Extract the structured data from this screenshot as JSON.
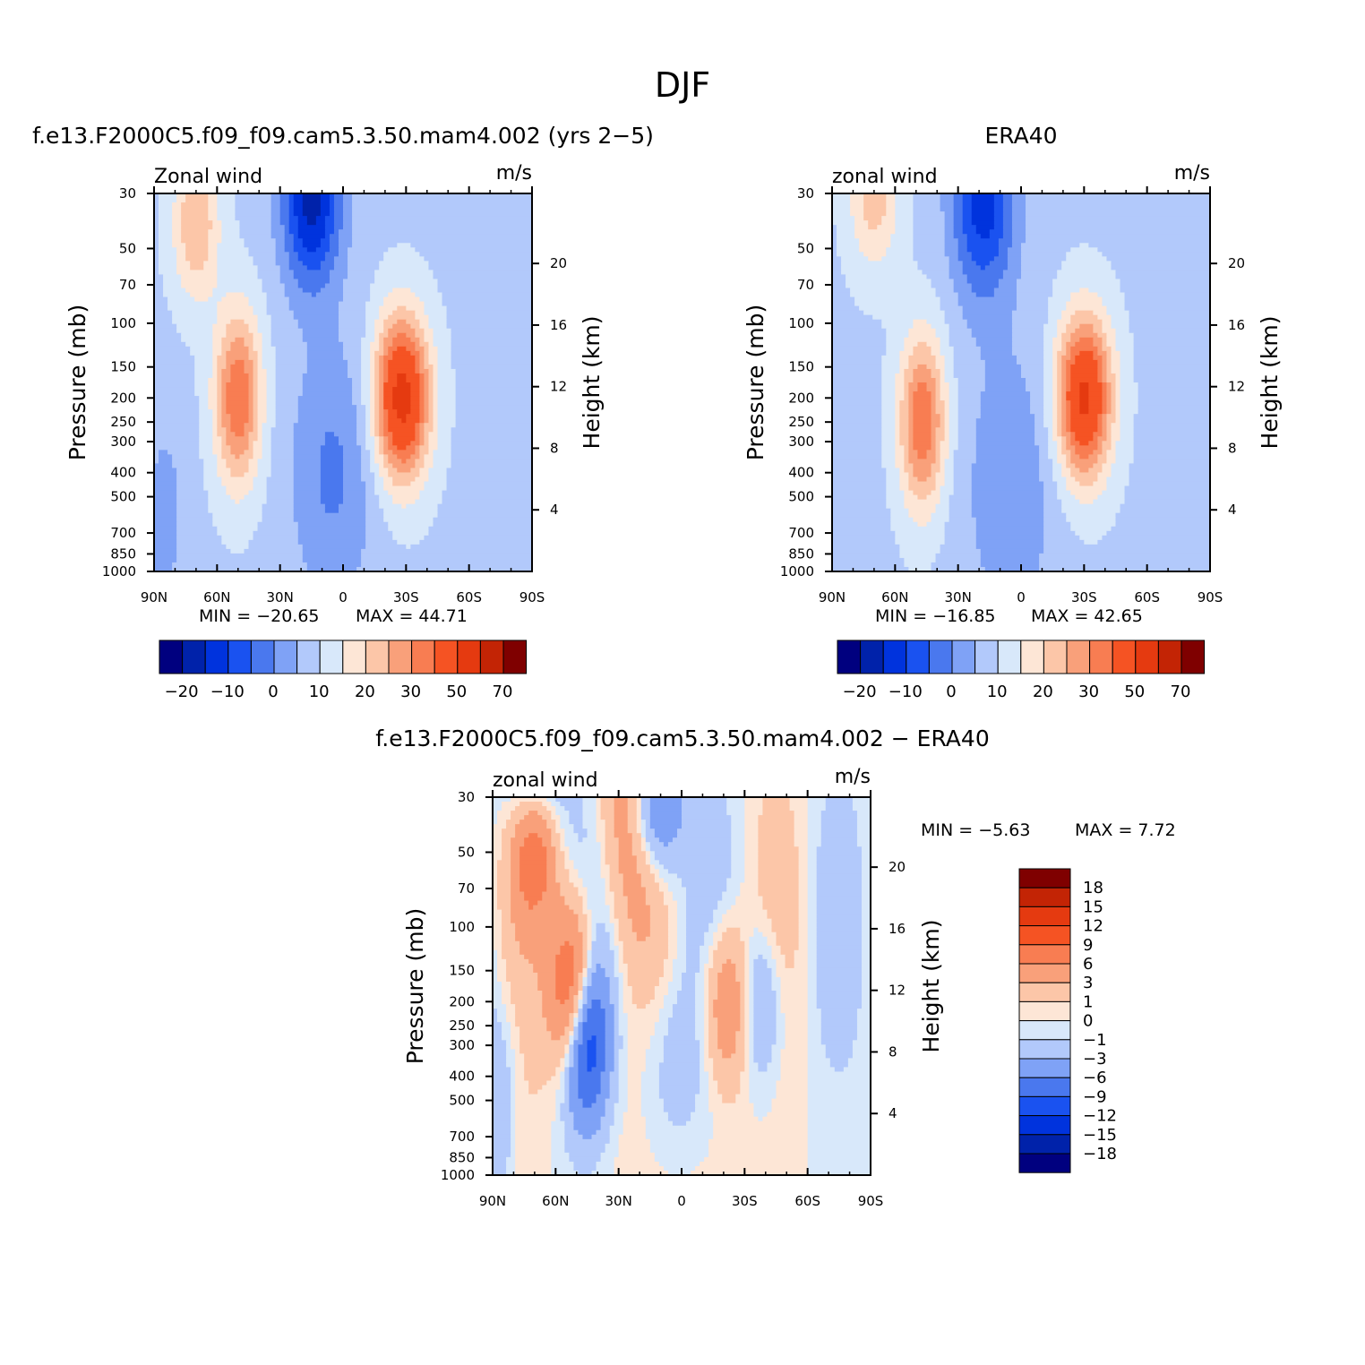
{
  "figure": {
    "title": "DJF",
    "colors": {
      "abs_levels": [
        "#00007f",
        "#0022aa",
        "#0033dd",
        "#1a52f0",
        "#4a78ee",
        "#7fa2f6",
        "#b2c9fb",
        "#d8e8fa",
        "#fde6d6",
        "#fcc6a8",
        "#f9a07a",
        "#f87d52",
        "#f55323",
        "#e53a10",
        "#c32405",
        "#7f0000"
      ],
      "diff_levels": [
        "#00007f",
        "#0022aa",
        "#0033dd",
        "#1a52f0",
        "#4a78ee",
        "#7fa2f6",
        "#b2c9fb",
        "#d8e8fa",
        "#fde6d6",
        "#fcc6a8",
        "#f9a07a",
        "#f87d52",
        "#f55323",
        "#e53a10",
        "#c32405",
        "#7f0000"
      ]
    },
    "colorbar_abs_labels": [
      "-20",
      "-10",
      "0",
      "10",
      "20",
      "30",
      "50",
      "70"
    ],
    "colorbar_diff_labels": [
      "18",
      "15",
      "12",
      "9",
      "6",
      "3",
      "1",
      "0",
      "-1",
      "-3",
      "-6",
      "-9",
      "-12",
      "-15",
      "-18"
    ]
  },
  "chart_data": [
    {
      "type": "heatmap",
      "title": "f.e13.F2000C5.f09_f09.cam5.3.50.mam4.002 (yrs 2-5)",
      "corner_left": "Zonal wind",
      "corner_right": "m/s",
      "ylabel": "Pressure (mb)",
      "ylabel_right": "Height (km)",
      "x_ticks": [
        "90N",
        "60N",
        "30N",
        "0",
        "30S",
        "60S",
        "90S"
      ],
      "y_ticks": [
        "30",
        "50",
        "70",
        "100",
        "150",
        "200",
        "250",
        "300",
        "400",
        "500",
        "700",
        "850",
        "1000"
      ],
      "y_ticks_right": [
        "20",
        "16",
        "12",
        "8",
        "4"
      ],
      "xlim": [
        "90N",
        "90S"
      ],
      "ylim": [
        1000,
        30
      ],
      "y_scale": "log",
      "min_label": "MIN = -20.65",
      "max_label": "MAX = 44.71",
      "min": -20.65,
      "max": 44.71,
      "jets": [
        {
          "lat": -28,
          "p": 200,
          "peak": 44.7
        },
        {
          "lat": 50,
          "p": 200,
          "peak": 28
        },
        {
          "lat": 18,
          "p": 30,
          "peak": -20.6
        }
      ]
    },
    {
      "type": "heatmap",
      "title": "ERA40",
      "corner_left": "zonal wind",
      "corner_right": "m/s",
      "ylabel": "Pressure (mb)",
      "ylabel_right": "Height (km)",
      "x_ticks": [
        "90N",
        "60N",
        "30N",
        "0",
        "30S",
        "60S",
        "90S"
      ],
      "y_ticks": [
        "30",
        "50",
        "70",
        "100",
        "150",
        "200",
        "250",
        "300",
        "400",
        "500",
        "700",
        "850",
        "1000"
      ],
      "y_ticks_right": [
        "20",
        "16",
        "12",
        "8",
        "4"
      ],
      "xlim": [
        "90N",
        "90S"
      ],
      "ylim": [
        1000,
        30
      ],
      "y_scale": "log",
      "min_label": "MIN = -16.85",
      "max_label": "MAX = 42.65",
      "min": -16.85,
      "max": 42.65,
      "jets": [
        {
          "lat": -30,
          "p": 200,
          "peak": 42.6
        },
        {
          "lat": 47,
          "p": 250,
          "peak": 30
        },
        {
          "lat": 18,
          "p": 30,
          "peak": -16.8
        }
      ]
    },
    {
      "type": "heatmap",
      "title": "f.e13.F2000C5.f09_f09.cam5.3.50.mam4.002 - ERA40",
      "corner_left": "zonal wind",
      "corner_right": "m/s",
      "ylabel": "Pressure (mb)",
      "ylabel_right": "Height (km)",
      "x_ticks": [
        "90N",
        "60N",
        "30N",
        "0",
        "30S",
        "60S",
        "90S"
      ],
      "y_ticks": [
        "30",
        "50",
        "70",
        "100",
        "150",
        "200",
        "250",
        "300",
        "400",
        "500",
        "700",
        "850",
        "1000"
      ],
      "y_ticks_right": [
        "20",
        "16",
        "12",
        "8",
        "4"
      ],
      "xlim": [
        "90N",
        "90S"
      ],
      "ylim": [
        1000,
        30
      ],
      "y_scale": "log",
      "min_label": "MIN = -5.63",
      "max_label": "MAX = 7.72",
      "min": -5.63,
      "max": 7.72
    }
  ]
}
